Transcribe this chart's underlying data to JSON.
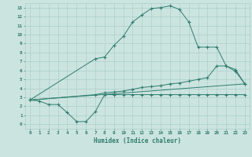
{
  "line1_x": [
    0,
    1,
    2,
    3,
    4,
    5,
    6,
    7,
    8,
    9,
    10,
    11,
    12,
    13,
    14,
    15,
    16,
    17,
    18,
    19,
    20,
    21,
    22,
    23
  ],
  "line1_y": [
    2.7,
    2.6,
    2.2,
    2.2,
    1.3,
    0.3,
    0.3,
    1.4,
    3.3,
    3.3,
    3.3,
    3.3,
    3.3,
    3.3,
    3.3,
    3.3,
    3.3,
    3.3,
    3.3,
    3.3,
    3.3,
    3.3,
    3.3,
    3.3
  ],
  "line2_x": [
    0,
    7,
    8,
    9,
    10,
    11,
    12,
    13,
    14,
    15,
    16,
    17,
    18,
    19,
    20,
    21,
    22,
    23
  ],
  "line2_y": [
    2.7,
    7.3,
    7.5,
    8.8,
    9.8,
    11.4,
    12.2,
    12.9,
    13.0,
    13.2,
    12.8,
    11.4,
    8.6,
    8.6,
    8.6,
    6.5,
    6.1,
    4.5
  ],
  "line3_x": [
    0,
    23
  ],
  "line3_y": [
    2.7,
    4.5
  ],
  "line4_x": [
    0,
    7,
    8,
    9,
    10,
    11,
    12,
    13,
    14,
    15,
    16,
    17,
    18,
    19,
    20,
    21,
    22,
    23
  ],
  "line4_y": [
    2.7,
    3.3,
    3.5,
    3.6,
    3.7,
    3.9,
    4.1,
    4.2,
    4.3,
    4.5,
    4.6,
    4.8,
    5.0,
    5.2,
    6.5,
    6.5,
    5.9,
    4.5
  ],
  "color": "#2e7d6e",
  "bg_color": "#cce4e0",
  "grid_color": "#aacfca",
  "xlabel": "Humidex (Indice chaleur)",
  "xlim": [
    -0.5,
    23.5
  ],
  "ylim": [
    -0.5,
    13.5
  ],
  "xticks": [
    0,
    1,
    2,
    3,
    4,
    5,
    6,
    7,
    8,
    9,
    10,
    11,
    12,
    13,
    14,
    15,
    16,
    17,
    18,
    19,
    20,
    21,
    22,
    23
  ],
  "yticks": [
    0,
    1,
    2,
    3,
    4,
    5,
    6,
    7,
    8,
    9,
    10,
    11,
    12,
    13
  ]
}
